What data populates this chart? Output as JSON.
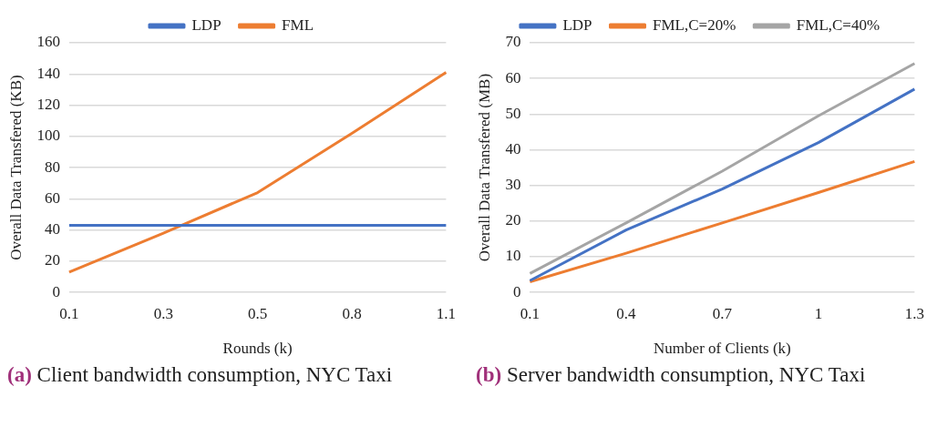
{
  "chart_data": [
    {
      "type": "line",
      "title": "(a) Client bandwidth consumption, NYC Taxi",
      "xlabel": "Rounds (k)",
      "ylabel": "Overall Data Transfered (KB)",
      "categories": [
        "0.1",
        "0.3",
        "0.5",
        "0.8",
        "1.1"
      ],
      "series": [
        {
          "name": "LDP",
          "color": "#4472c4",
          "values": [
            43,
            43,
            43,
            43,
            43
          ]
        },
        {
          "name": "FML",
          "color": "#ed7d31",
          "values": [
            13,
            38,
            64,
            102,
            141
          ]
        }
      ],
      "ylim": [
        0,
        160
      ],
      "yticks": [
        0,
        20,
        40,
        60,
        80,
        100,
        120,
        140,
        160
      ],
      "grid": "y",
      "legend": "top",
      "marker": "none",
      "line_style": "solid"
    },
    {
      "type": "line",
      "title": "(b) Server bandwidth consumption, NYC Taxi",
      "xlabel": "Number of Clients (k)",
      "ylabel": "Overall Data Transfered (MB)",
      "categories": [
        "0.1",
        "0.4",
        "0.7",
        "1",
        "1.3"
      ],
      "series": [
        {
          "name": "LDP",
          "color": "#4472c4",
          "values": [
            3.3,
            17.5,
            29,
            42,
            57
          ]
        },
        {
          "name": "FML,C=20%",
          "color": "#ed7d31",
          "values": [
            3,
            11,
            19.5,
            28,
            36.7
          ]
        },
        {
          "name": "FML,C=40%",
          "color": "#a5a5a5",
          "values": [
            5.3,
            19.5,
            34,
            49.5,
            64.2
          ]
        }
      ],
      "ylim": [
        0,
        70
      ],
      "yticks": [
        0,
        10,
        20,
        30,
        40,
        50,
        60,
        70
      ],
      "grid": "y",
      "legend": "top",
      "marker": "none",
      "line_style": "solid"
    }
  ]
}
